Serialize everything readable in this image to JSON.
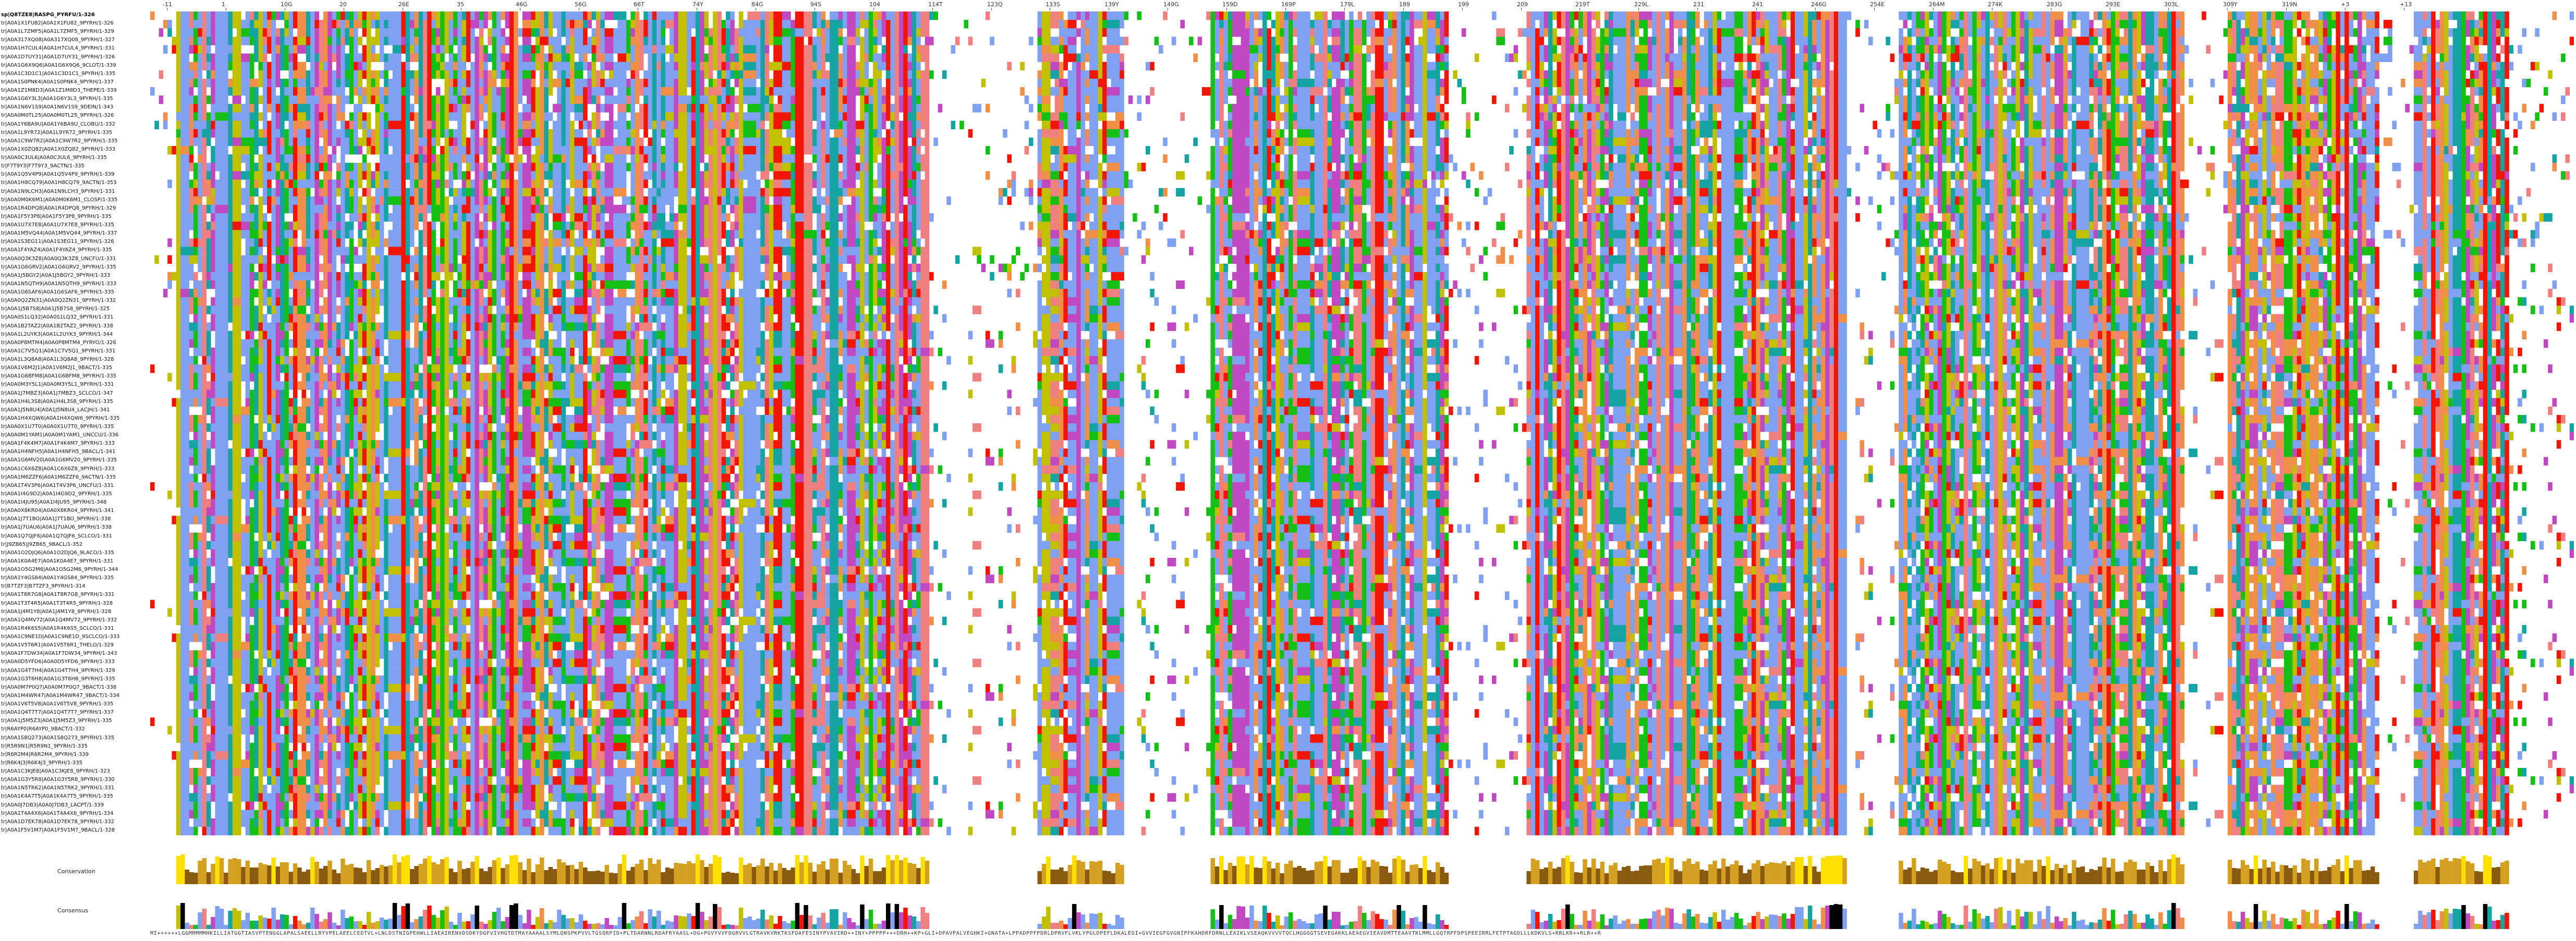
{
  "ruler": {
    "ticks": [
      "-11",
      "1",
      "10G",
      "20",
      "26E",
      "35",
      "46G",
      "56G",
      "66T",
      "74Y",
      "84G",
      "94S",
      "104",
      "114T",
      "123Q",
      "133S",
      "139Y",
      "149G",
      "159D",
      "169P",
      "179L",
      "189",
      "199",
      "209",
      "219T",
      "229L",
      "231",
      "241",
      "246G",
      "254E",
      "264M",
      "274K",
      "283G",
      "293E",
      "303L",
      "309Y",
      "319N",
      "+3",
      "+13"
    ]
  },
  "sequences": {
    "reference": "sp|Q8TZE8|RASPG_PYRFU/1-326",
    "names": [
      "sp|Q8TZE8|RASPG_PYRFU/1-326",
      "tr|A0A1X1FU82|A0A1X1FU82_9PYRH/1-326",
      "tr|A0A1L7ZMF5|A0A1L7ZMF5_9PYRH/1-329",
      "tr|A0A317XQ08|A0A317XQ08_9PYRH/1-327",
      "tr|A0A1H7CUL4|A0A1H7CUL4_9PYRH/1-331",
      "tr|A0A1D7UY31|A0A1D7UY31_9PYRH/1-326",
      "tr|A0A1G6X9Q6|A0A1G6X9Q6_9CLOT/1-339",
      "tr|A0A1C3D1C1|A0A1C3D1C1_9PYRH/1-335",
      "tr|A0A1S0PNK4|A0A1S0PNK4_9PYRH/1-337",
      "tr|A0A1Z1M8D3|A0A1Z1M8D3_THEPE/1-339",
      "tr|A0A1G6Y3L3|A0A1G6Y3L3_9PYRH/1-335",
      "tr|A0A1N6V1S9|A0A1N6V1S9_9DEIN/1-343",
      "tr|A0A0M0TL25|A0A0M0TL25_9PYRH/1-326",
      "tr|A0A1Y6BA9U|A0A1Y6BA9U_CLOBU/1-332",
      "tr|A0A1L9YR72|A0A1L9YR72_9PYRH/1-335",
      "tr|A0A1C9W7R2|A0A1C9W7R2_9PYRH/1-335",
      "tr|A0A1X0ZQ82|A0A1X0ZQ82_9PYRH/1-333",
      "tr|A0A0C3UL6|A0A0C3UL6_9PYRH/1-335",
      "tr|F7T9Y3|F7T9Y3_9ACTN/1-335",
      "tr|A0A1Q5V4P9|A0A1Q5V4P9_9PYRH/1-339",
      "tr|A0A1H8CQ79|A0A1H8CQ79_9ACTN/1-353",
      "tr|A0A1N9LCH3|A0A1N9LCH3_9PYRH/1-331",
      "tr|A0A0M0K6M1|A0A0M0K6M1_CLOSP/1-335",
      "tr|A0A1R4DPQ8|A0A1R4DPQ8_9PYRH/1-329",
      "tr|A0A1F5Y3P8|A0A1F5Y3P8_9PYRH/1-335",
      "tr|A0A1U7X7E8|A0A1U7X7E8_9PYRH/1-335",
      "tr|A0A1M5VQ44|A0A1M5VQ44_9PYRH/1-337",
      "tr|A0A1S3EG11|A0A1S3EG11_9PYRH/1-326",
      "tr|A0A1F4YAZ4|A0A1F4YAZ4_9PYRH/1-335",
      "tr|A0A0Q3K3Z8|A0A0Q3K3Z8_UNCFU/1-331",
      "tr|A0A1G6GRV2|A0A1G6GRV2_9PYRH/1-335",
      "tr|A0A1J5BGY2|A0A1J5BGY2_9PYRH/1-333",
      "tr|A0A1N5QTH9|A0A1N5QTH9_9PYRH/1-333",
      "tr|A0A1G6SAF6|A0A1G6SAF6_9PYRH/1-335",
      "tr|A0A0Q2ZN31|A0A0Q2ZN31_9PYRH/1-332",
      "tr|A0A1J5B7S8|A0A1J5B7S8_9PYRH/1-325",
      "tr|A0A0S1LQ32|A0A0S1LQ32_9PYRH/1-331",
      "tr|A0A1B2TAZ2|A0A1B2TAZ2_9PYRH/1-338",
      "tr|A0A1L2UYK3|A0A1L2UYK3_9PYRH/1-344",
      "tr|A0A0P8MTM4|A0A0P8MTM4_PYRYO/1-326",
      "tr|A0A1C7V5Q1|A0A1C7V5Q1_9PYRH/1-331",
      "tr|A0A1L3Q8A8|A0A1L3Q8A8_9PYRH/1-328",
      "tr|A0A1V6M2J1|A0A1V6M2J1_9BACT/1-335",
      "tr|A0A1G6BFM8|A0A1G6BFM8_9PYRH/1-335",
      "tr|A0A0M3Y5L1|A0A0M3Y5L1_9PYRH/1-331",
      "tr|A0A1J7MBZ3|A0A1J7MBZ3_SCLCO/1-347",
      "tr|A0A1H4L3S8|A0A1H4L3S8_9PYRH/1-335",
      "tr|A0A1J5N8U4|A0A1J5N8U4_LACJH/1-341",
      "tr|A0A1H4XQW6|A0A1H4XQW6_9PYRH/1-335",
      "tr|A0A0X1U7T0|A0A0X1U7T0_9PYRH/1-335",
      "tr|A0A0M1YAM1|A0A0M1YAM1_UNCCU/1-336",
      "tr|A0A1F4K4M7|A0A1F4K4M7_9PYRH/1-333",
      "tr|A0A1H4NFH5|A0A1H4NFH5_9BACL/1-341",
      "tr|A0A1G6MV20|A0A1G6MV20_9PYRH/1-335",
      "tr|A0A1C6X6Z8|A0A1C6X6Z8_9PYRH/1-333",
      "tr|A0A1M6ZZF6|A0A1M6ZZF6_9ACTN/1-335",
      "tr|A0A1T4V3P6|A0A1T4V3P6_UNCFU/1-331",
      "tr|A0A1I4G9D2|A0A1I4G9D2_9PYRH/1-335",
      "tr|A0A1I4JU95|A0A1I4JU95_9PYRH/1-348",
      "tr|A0A0X8KR04|A0A0X8KR04_9PYRH/1-341",
      "tr|A0A1J7T1BO|A0A1J7T1BO_9PYRH/1-338",
      "tr|A0A1J7UAU6|A0A1J7UAU6_9PYRH/1-338",
      "tr|A0A1Q7QJF6|A0A1Q7QJF6_SCLCO/1-331",
      "tr|J9ZB65|J9ZB65_9BACL/1-352",
      "tr|A0A1O2DJQ6|A0A1O2DJQ6_9LACO/1-335",
      "tr|A0A1K0A4E7|A0A1K0A4E7_9PYRH/1-331",
      "tr|A0A1O5G2M6|A0A1O5G2M6_9PYRH/1-344",
      "tr|A0A1Y4GS84|A0A1Y4GS84_9PYRH/1-335",
      "tr|B7TZF3|B7TZF3_9PYRH/1-314",
      "tr|A0A1T8R7G8|A0A1T8R7G8_9PYRH/1-331",
      "tr|A0A1T3T4R5|A0A1T3T4R5_9PYRH/1-328",
      "tr|A0A1J4M1Y8|A0A1J4M1Y8_9PYRH/1-328",
      "tr|A0A1Q4MV72|A0A1Q4MV72_9PYRH/1-332",
      "tr|A0A1R4K6S5|A0A1R4K6S5_SCLCO/1-331",
      "tr|A0A1C9NE1D|A0A1C9NE1D_9SCLCO/1-333",
      "tr|A0A1V5T6R1|A0A1V5T6R1_THELO/1-329",
      "tr|A0A1F7DW34|A0A1F7DW34_9PYRH/1-343",
      "tr|A0A0D5YFD6|A0A0D5YFD6_9PYRH/1-333",
      "tr|A0A1G4T7H4|A0A1G4T7H4_9PYRH/1-329",
      "tr|A0A1G3T6H8|A0A1G3T6H8_9PYRH/1-335",
      "tr|A0A0M7P0Q7|A0A0M7P0Q7_9BACT/1-338",
      "tr|A0A1M4WR47|A0A1M4WR47_9BACT/1-334",
      "tr|A0A1V6T5V8|A0A1V6T5V8_9PYRH/1-335",
      "tr|A0A1Q4T7T7|A0A1Q4T7T7_9PYRH/1-337",
      "tr|A0A1J5M5Z3|A0A1J5M5Z3_9PYRH/1-335",
      "tr|R6AYP0|R6AYP0_9BACT/1-332",
      "tr|A0A1S8Q273|A0A1S8Q273_9PYRH/1-335",
      "tr|R5R9N1|R5R9N1_9PYRH/1-335",
      "tr|R6R2M4|R6R2M4_9PYRH/1-339",
      "tr|R6K4J3|R6K4J3_9PYRH/1-335",
      "tr|A0A1C3KJE8|A0A1C3KJE8_9PYRH/1-323",
      "tr|A0A1G3Y5R8|A0A1G3Y5R8_9PYRH/1-330",
      "tr|A0A1N5TRK2|A0A1N5TRK2_9PYRH/1-331",
      "tr|A0A1K4A7T5|A0A1K4A7T5_9PYRH/1-335",
      "tr|A0A0J7DB3|A0A0J7DB3_LACPT/1-339",
      "tr|A0A1T4A4X6|A0A1T4A4X6_9PYRH/1-334",
      "tr|A0A1D7EK78|A0A1D7EK78_9PYRH/1-332",
      "tr|A0A1F5V1M7|A0A1F5V1M7_9BACL/1-328"
    ]
  },
  "annotations": {
    "conservation_label": "Conservation",
    "consensus_label": "Consensus",
    "consensus_sequence": "MI++++++LGGMMMMMHKILLIATGGTIASVPTENGGLAPALSAEELLRYVPELAEELCEDTVL+LNLDSTNIGPEHWLLIAEAIRENVDSDKYDGFVIVHGTDTMAYAAAALSYMLQNSPKPVVLTGSQRPID+PLTDARNNLRDAFRYAASL+DG+PGVYVVFDGRVVLGTRAVKVRKTKSFDAFESINYPVAVIRD++INY+PPPPP+++DRH++KP+GLI+DPAVPALVEGHKI+GNATA+LPPADPPFPDRLDPRVFLVKLYPGLDPEFLDKALEGI+GVVIEGFGVGNIPFKAHDRFDRNLLEAIKLVSEAQKVVVVTQCLHGGGGTSEVEGAKKLAEAEGVIEAVDMTTEAAVTKLMMLLGQTRPFDPSPEEIRRLFETPTAGDLLLKDKVLS+RRLKR++RLR++R"
  }
}
